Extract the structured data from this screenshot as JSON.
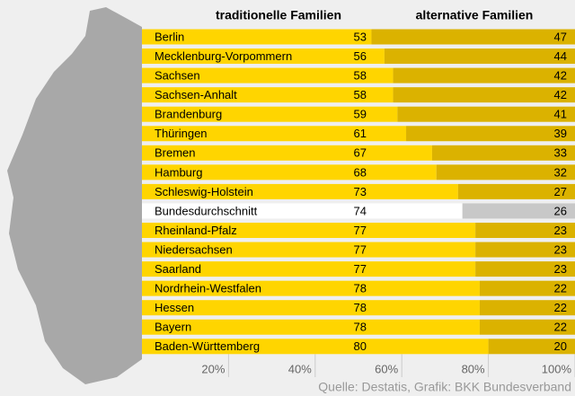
{
  "chart_data": {
    "type": "stacked_bar_horizontal",
    "source": "Quelle: Destatis, Grafik: BKK Bundesverband",
    "categories": [
      "Berlin",
      "Mecklenburg-Vorpommern",
      "Sachsen",
      "Sachsen-Anhalt",
      "Brandenburg",
      "Thüringen",
      "Bremen",
      "Hamburg",
      "Schleswig-Holstein",
      "Bundesdurchschnitt",
      "Rheinland-Pfalz",
      "Niedersachsen",
      "Saarland",
      "Nordrhein-Westfalen",
      "Hessen",
      "Bayern",
      "Baden-Württemberg"
    ],
    "series": [
      {
        "name": "traditionelle Familien",
        "color": "#ffd500",
        "highlight_color": "#ffffff",
        "values": [
          53,
          56,
          58,
          58,
          59,
          61,
          67,
          68,
          73,
          74,
          77,
          77,
          77,
          78,
          78,
          78,
          80
        ]
      },
      {
        "name": "alternative Familien",
        "color": "#dbb200",
        "highlight_color": "#c8c8c8",
        "values": [
          47,
          44,
          42,
          42,
          41,
          39,
          33,
          32,
          27,
          26,
          23,
          23,
          23,
          22,
          22,
          22,
          20
        ]
      }
    ],
    "highlight": 9,
    "xlim": [
      0,
      100
    ],
    "xticks": [
      {
        "value": 20,
        "label": "20%"
      },
      {
        "value": 40,
        "label": "40%"
      },
      {
        "value": 60,
        "label": "60%"
      },
      {
        "value": 80,
        "label": "80%"
      },
      {
        "value": 100,
        "label": "100%"
      }
    ]
  }
}
